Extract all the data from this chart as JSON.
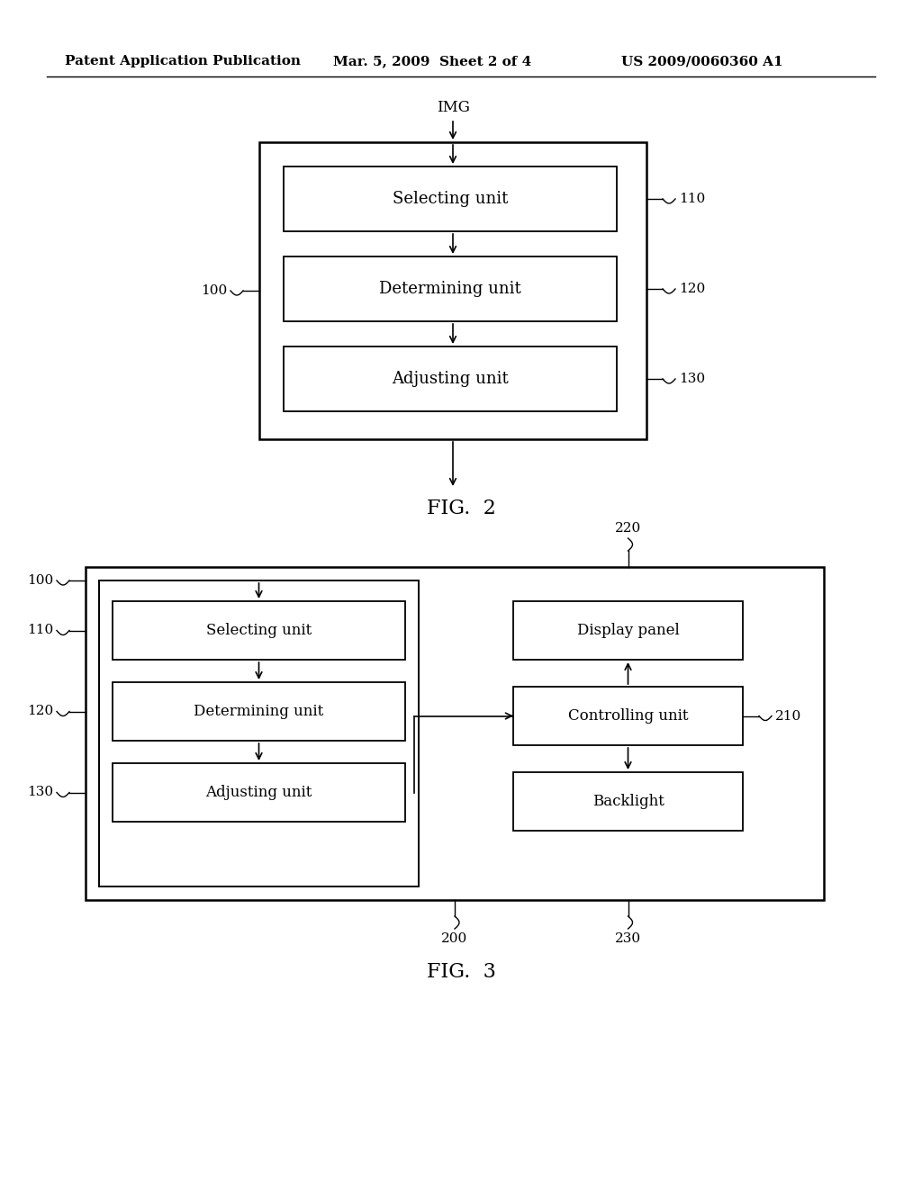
{
  "background_color": "#ffffff",
  "header_left": "Patent Application Publication",
  "header_mid": "Mar. 5, 2009  Sheet 2 of 4",
  "header_right": "US 2009/0060360 A1",
  "fig2_title": "FIG.  2",
  "fig3_title": "FIG.  3"
}
